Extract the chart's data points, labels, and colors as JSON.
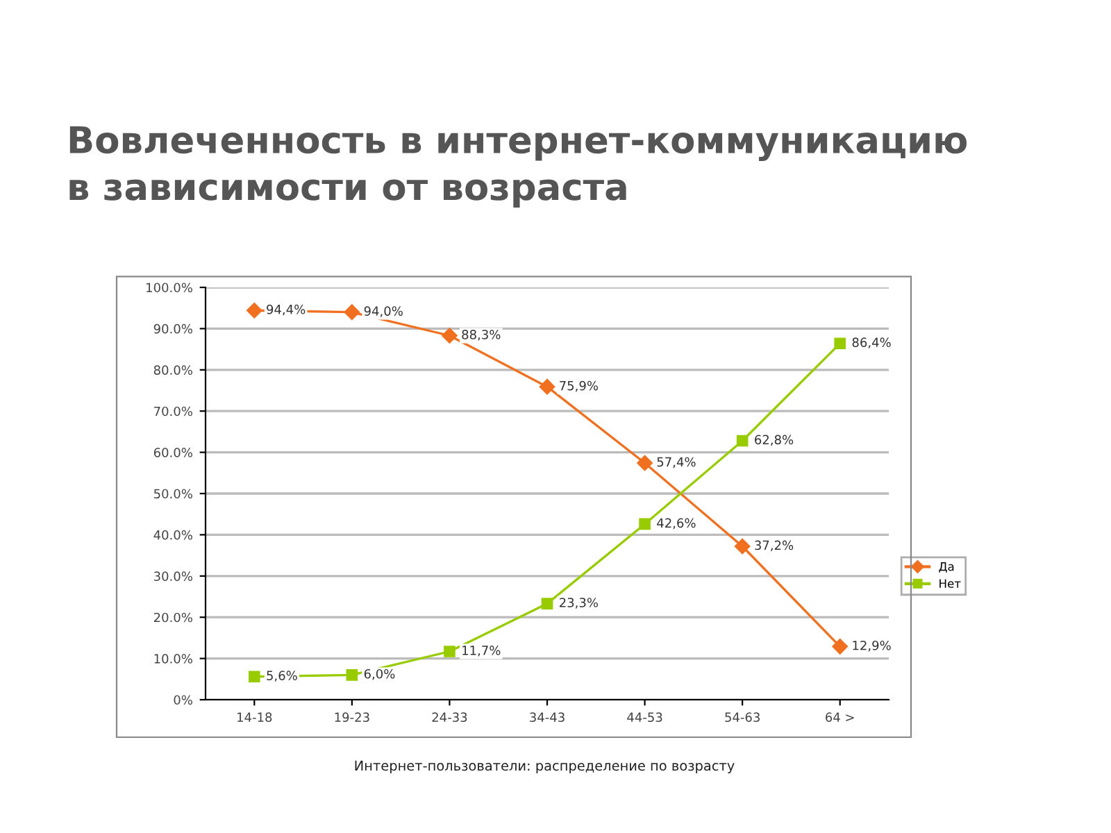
{
  "chart_data": {
    "type": "line",
    "title": "Вовлеченность в интернет-коммуникацию\nв зависимости от возраста",
    "xlabel": "Интернет-пользователи: распределение по возрасту",
    "categories": [
      "14-18",
      "19-23",
      "24-33",
      "34-43",
      "44-53",
      "54-63",
      "64 >"
    ],
    "series": [
      {
        "name": "Да",
        "color": "#f07020",
        "marker": "diamond",
        "values": [
          94.4,
          94.0,
          88.3,
          75.9,
          57.4,
          37.2,
          12.9
        ],
        "value_labels": [
          "94,4%",
          "94,0%",
          "88,3%",
          "75,9%",
          "57,4%",
          "37,2%",
          "12,9%"
        ]
      },
      {
        "name": "Нет",
        "color": "#99cc00",
        "marker": "square",
        "values": [
          5.6,
          6.0,
          11.7,
          23.3,
          42.6,
          62.8,
          86.4
        ],
        "value_labels": [
          "5,6%",
          "6,0%",
          "11,7%",
          "23,3%",
          "42,6%",
          "62,8%",
          "86,4%"
        ]
      }
    ],
    "ylim": [
      0,
      100
    ],
    "yticks": [
      {
        "value": 0,
        "label": "0%"
      },
      {
        "value": 10,
        "label": "10.0%"
      },
      {
        "value": 20,
        "label": "20.0%"
      },
      {
        "value": 30,
        "label": "30.0%"
      },
      {
        "value": 40,
        "label": "40.0%"
      },
      {
        "value": 50,
        "label": "50.0%"
      },
      {
        "value": 60,
        "label": "60.0%"
      },
      {
        "value": 70,
        "label": "70.0%"
      },
      {
        "value": 80,
        "label": "80.0%"
      },
      {
        "value": 90,
        "label": "90.0%"
      },
      {
        "value": 100,
        "label": "100.0%"
      }
    ],
    "grid": "y",
    "legend": "right",
    "line_style": "solid"
  }
}
